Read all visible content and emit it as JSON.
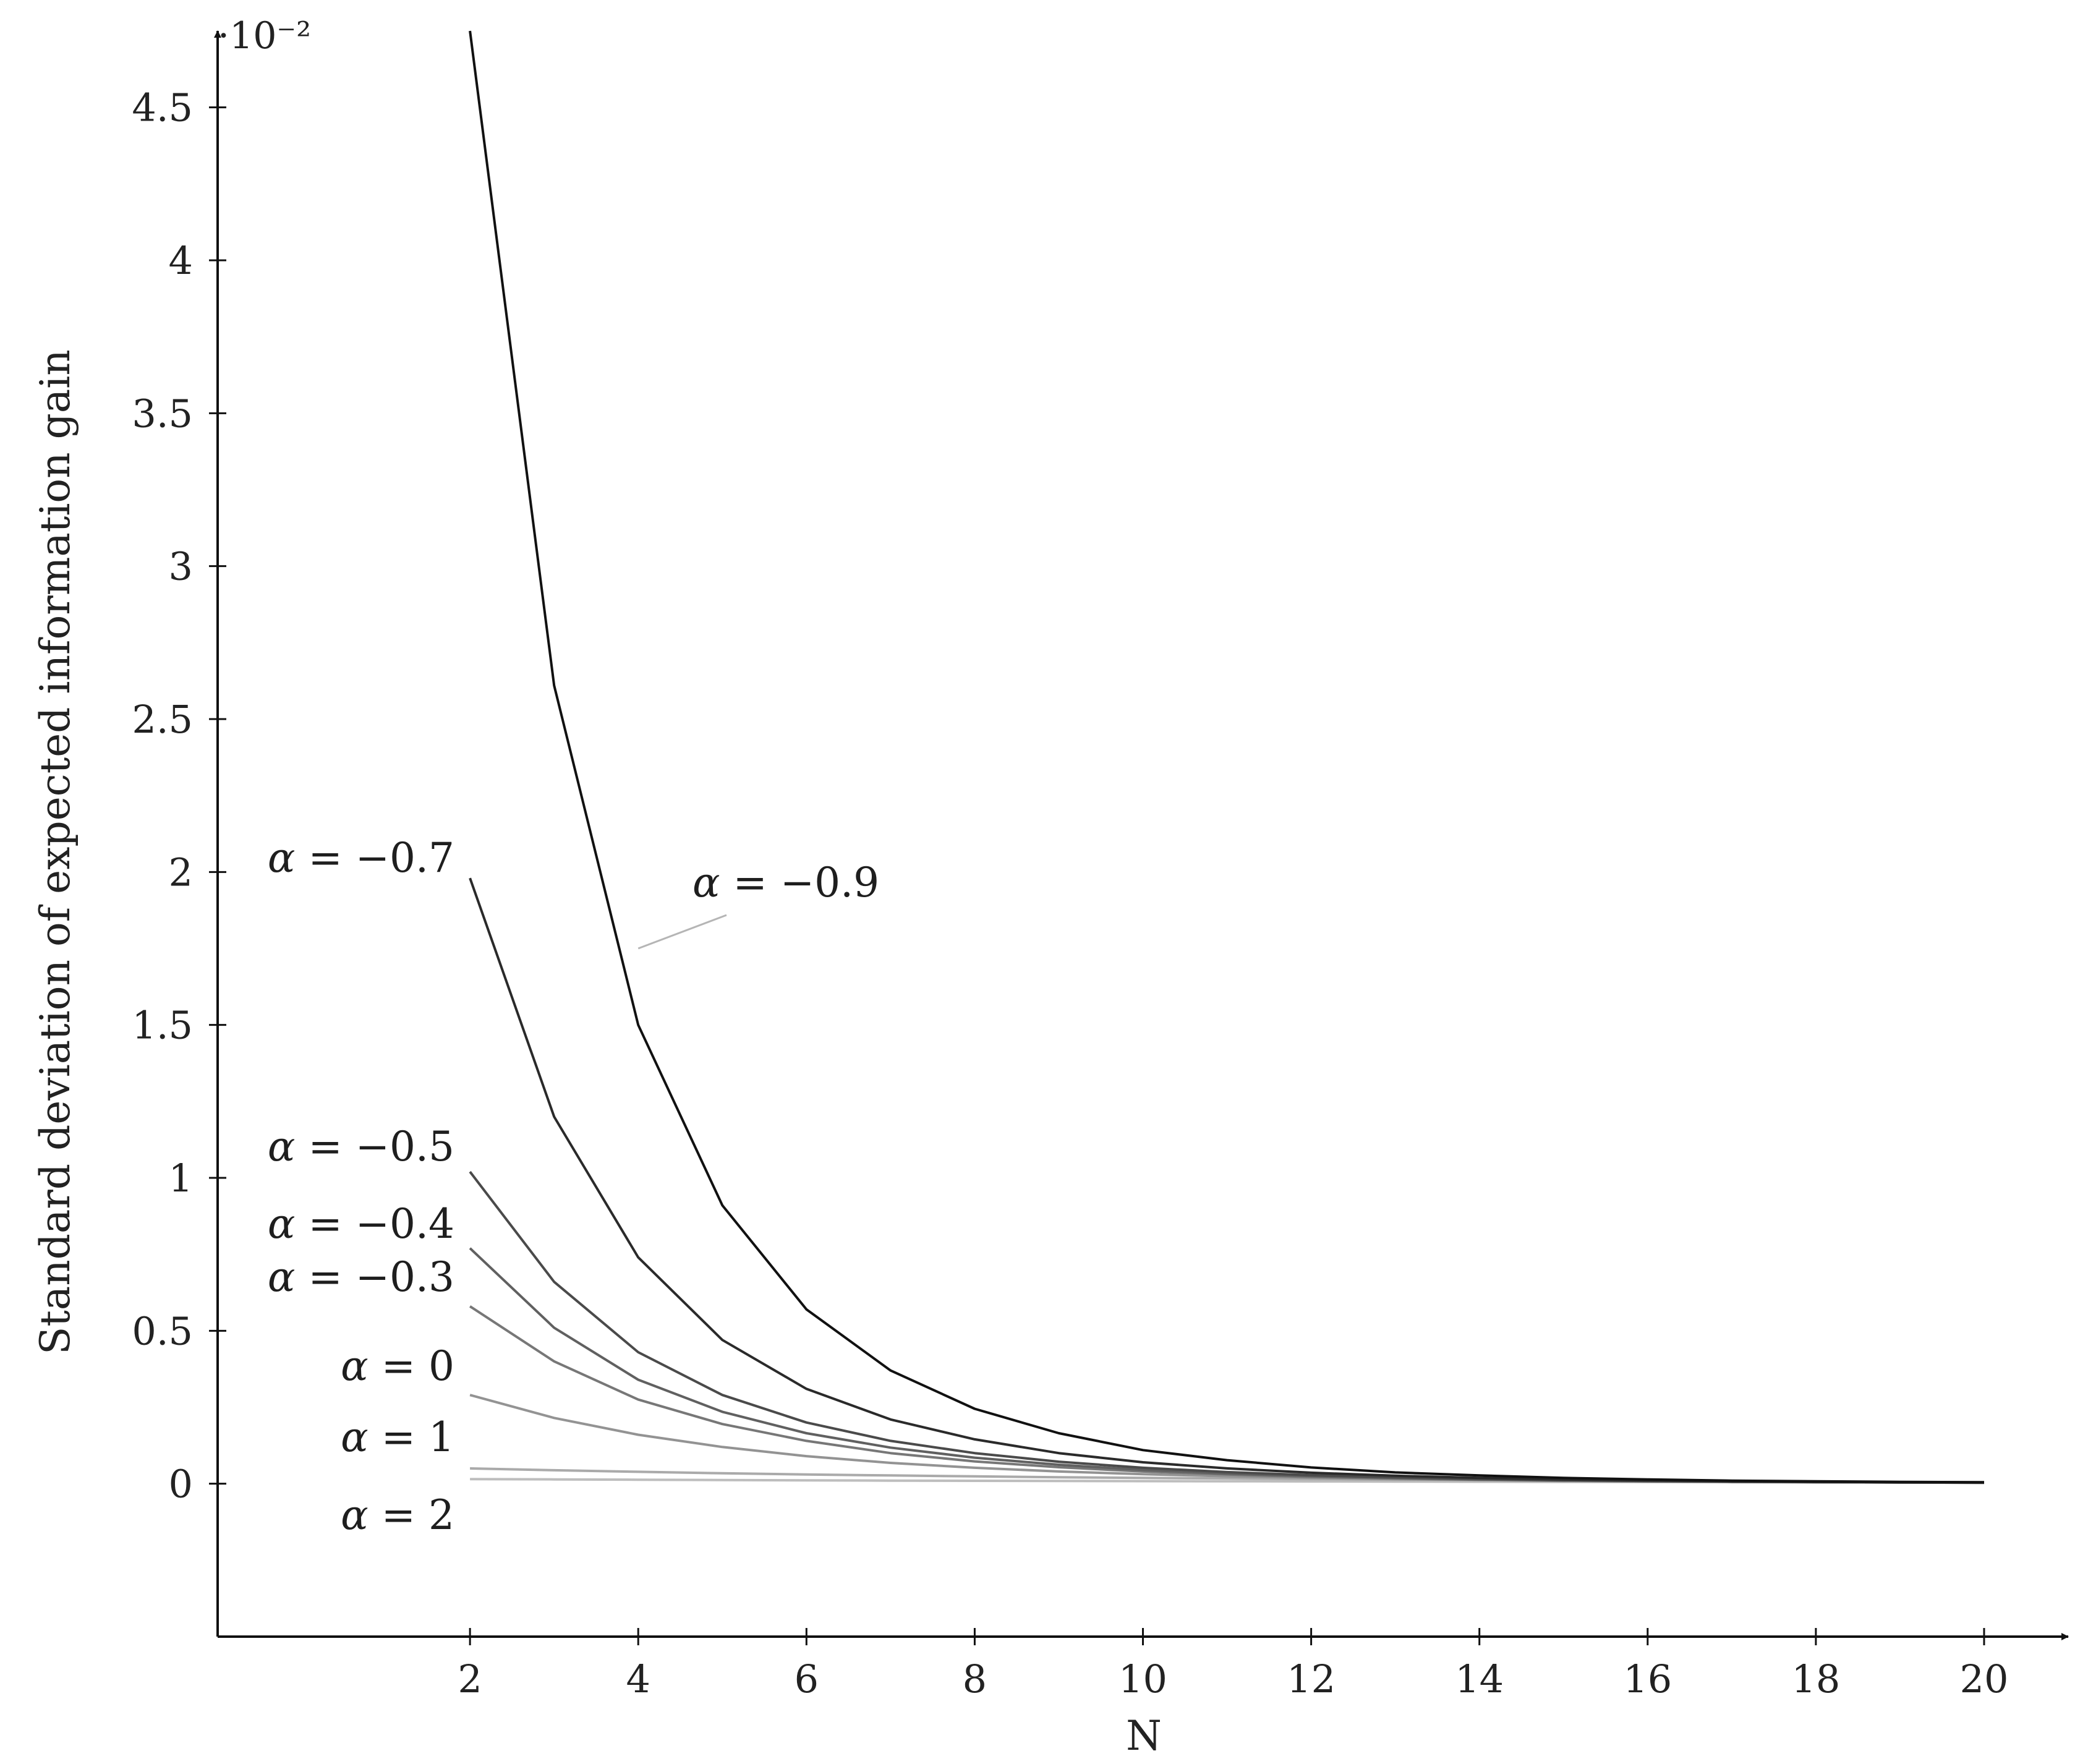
{
  "chart_data": {
    "type": "line",
    "xlabel": "N",
    "ylabel": "Standard deviation of expected information gain",
    "y_scale_label": "·10⁻²",
    "xlim": [
      -1,
      21
    ],
    "ylim": [
      -0.5,
      4.75
    ],
    "x_ticks": [
      2,
      4,
      6,
      8,
      10,
      12,
      14,
      16,
      18,
      20
    ],
    "x_tick_labels": [
      "2",
      "4",
      "6",
      "8",
      "10",
      "12",
      "14",
      "16",
      "18",
      "20"
    ],
    "y_ticks": [
      0,
      0.5,
      1,
      1.5,
      2,
      2.5,
      3,
      3.5,
      4,
      4.5
    ],
    "y_tick_labels": [
      "0",
      "0.5",
      "1",
      "1.5",
      "2",
      "2.5",
      "3",
      "3.5",
      "4",
      "4.5"
    ],
    "grid": false,
    "legend": "none (labels placed next to curves)",
    "x": [
      2,
      3,
      4,
      5,
      6,
      7,
      8,
      9,
      10,
      11,
      12,
      13,
      14,
      15,
      16,
      17,
      18,
      19,
      20
    ],
    "series": [
      {
        "name": "α = −0.9",
        "color": "#111111",
        "values": [
          4.75,
          2.61,
          1.5,
          0.91,
          0.57,
          0.37,
          0.245,
          0.165,
          0.11,
          0.077,
          0.053,
          0.037,
          0.027,
          0.019,
          0.014,
          0.01,
          0.008,
          0.006,
          0.005
        ]
      },
      {
        "name": "α = −0.7",
        "color": "#2a2a2a",
        "values": [
          1.98,
          1.2,
          0.74,
          0.47,
          0.31,
          0.21,
          0.145,
          0.1,
          0.07,
          0.05,
          0.036,
          0.026,
          0.019,
          0.014,
          0.011,
          0.008,
          0.006,
          0.005,
          0.004
        ]
      },
      {
        "name": "α = −0.5",
        "color": "#4a4a4a",
        "values": [
          1.02,
          0.66,
          0.43,
          0.29,
          0.2,
          0.14,
          0.1,
          0.072,
          0.052,
          0.038,
          0.028,
          0.021,
          0.016,
          0.012,
          0.009,
          0.007,
          0.006,
          0.005,
          0.004
        ]
      },
      {
        "name": "α = −0.4",
        "color": "#606060",
        "values": [
          0.77,
          0.51,
          0.34,
          0.235,
          0.165,
          0.118,
          0.085,
          0.062,
          0.045,
          0.033,
          0.025,
          0.019,
          0.014,
          0.011,
          0.009,
          0.007,
          0.005,
          0.004,
          0.004
        ]
      },
      {
        "name": "α = −0.3",
        "color": "#777777",
        "values": [
          0.58,
          0.4,
          0.275,
          0.195,
          0.14,
          0.1,
          0.073,
          0.054,
          0.04,
          0.03,
          0.022,
          0.017,
          0.013,
          0.01,
          0.008,
          0.006,
          0.005,
          0.004,
          0.003
        ]
      },
      {
        "name": "α = 0",
        "color": "#939393",
        "values": [
          0.29,
          0.215,
          0.16,
          0.12,
          0.09,
          0.068,
          0.052,
          0.04,
          0.031,
          0.024,
          0.019,
          0.015,
          0.012,
          0.009,
          0.007,
          0.006,
          0.005,
          0.004,
          0.003
        ]
      },
      {
        "name": "α = 1",
        "color": "#aaaaaa",
        "values": [
          0.05,
          0.044,
          0.039,
          0.034,
          0.03,
          0.027,
          0.024,
          0.021,
          0.019,
          0.017,
          0.015,
          0.013,
          0.012,
          0.01,
          0.009,
          0.008,
          0.007,
          0.006,
          0.005
        ]
      },
      {
        "name": "α = 2",
        "color": "#bdbdbd",
        "values": [
          0.015,
          0.014,
          0.013,
          0.012,
          0.011,
          0.01,
          0.0095,
          0.009,
          0.0085,
          0.008,
          0.0075,
          0.007,
          0.0065,
          0.006,
          0.0055,
          0.005,
          0.0045,
          0.004,
          0.0035
        ]
      }
    ],
    "annotations": [
      {
        "text_prefix": "α",
        "text_suffix": " = −0.9",
        "points_to": {
          "x": 4,
          "y": 1.75
        }
      },
      {
        "text_prefix": "α",
        "text_suffix": " = −0.7"
      },
      {
        "text_prefix": "α",
        "text_suffix": " = −0.5"
      },
      {
        "text_prefix": "α",
        "text_suffix": " = −0.4"
      },
      {
        "text_prefix": "α",
        "text_suffix": " = −0.3"
      },
      {
        "text_prefix": "α",
        "text_suffix": " = 0"
      },
      {
        "text_prefix": "α",
        "text_suffix": " = 1"
      },
      {
        "text_prefix": "α",
        "text_suffix": " = 2"
      }
    ]
  }
}
